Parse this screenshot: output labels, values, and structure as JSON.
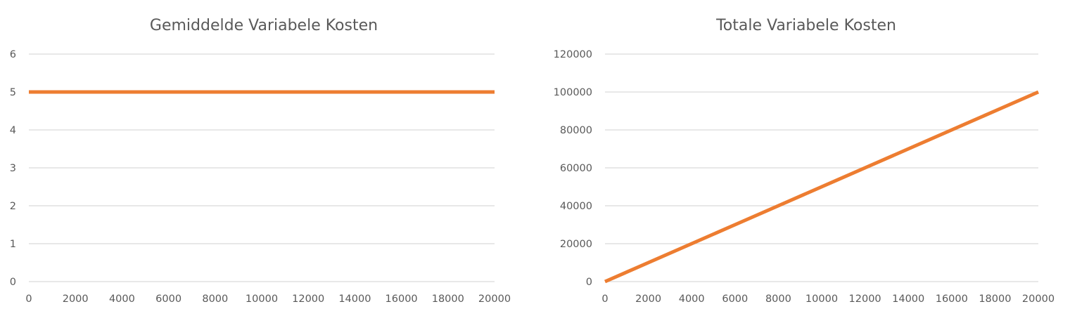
{
  "chart_data": [
    {
      "type": "line",
      "title": "Gemiddelde Variabele Kosten",
      "xlabel": "",
      "ylabel": "",
      "x": [
        0,
        2000,
        4000,
        6000,
        8000,
        10000,
        12000,
        14000,
        16000,
        18000,
        20000
      ],
      "xticks": [
        "0",
        "2000",
        "4000",
        "6000",
        "8000",
        "10000",
        "12000",
        "14000",
        "16000",
        "18000",
        "20000"
      ],
      "xlim": [
        0,
        20000
      ],
      "yticks": [
        "0",
        "1",
        "2",
        "3",
        "4",
        "5",
        "6"
      ],
      "ylim": [
        0,
        6
      ],
      "grid": true,
      "series": [
        {
          "values": [
            5,
            5,
            5,
            5,
            5,
            5,
            5,
            5,
            5,
            5,
            5
          ],
          "color": "#ed7d31"
        }
      ]
    },
    {
      "type": "line",
      "title": "Totale Variabele Kosten",
      "xlabel": "",
      "ylabel": "",
      "x": [
        0,
        2000,
        4000,
        6000,
        8000,
        10000,
        12000,
        14000,
        16000,
        18000,
        20000
      ],
      "xticks": [
        "0",
        "2000",
        "4000",
        "6000",
        "8000",
        "10000",
        "12000",
        "14000",
        "16000",
        "18000",
        "20000"
      ],
      "xlim": [
        0,
        20000
      ],
      "yticks": [
        "0",
        "20000",
        "40000",
        "60000",
        "80000",
        "100000",
        "120000"
      ],
      "ylim": [
        0,
        120000
      ],
      "grid": true,
      "series": [
        {
          "values": [
            0,
            10000,
            20000,
            30000,
            40000,
            50000,
            60000,
            70000,
            80000,
            90000,
            100000
          ],
          "color": "#ed7d31"
        }
      ]
    }
  ]
}
